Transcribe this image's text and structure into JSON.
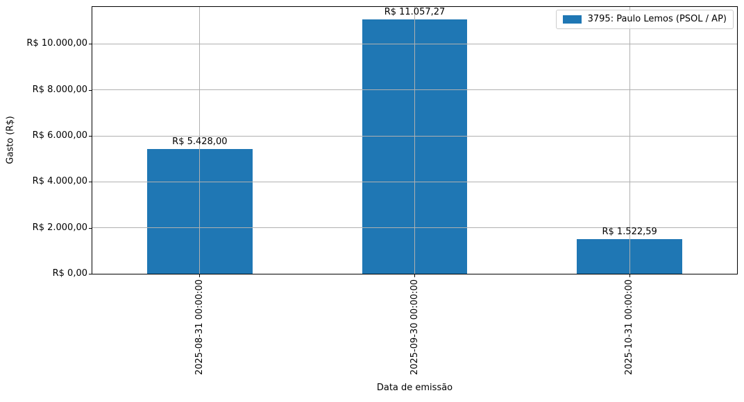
{
  "chart_data": {
    "type": "bar",
    "title": "",
    "xlabel": "Data de emissão",
    "ylabel": "Gasto (R$)",
    "categories": [
      "2025-08-31 00:00:00",
      "2025-09-30 00:00:00",
      "2025-10-31 00:00:00"
    ],
    "series": [
      {
        "name": "3795: Paulo Lemos (PSOL / AP)",
        "values": [
          5428.0,
          11057.27,
          1522.59
        ],
        "color": "#1f77b4"
      }
    ],
    "bar_labels": [
      "R$ 5.428,00",
      "R$ 11.057,27",
      "R$ 1.522,59"
    ],
    "y_ticks": [
      {
        "value": 0,
        "label": "R$ 0,00"
      },
      {
        "value": 2000,
        "label": "R$ 2.000,00"
      },
      {
        "value": 4000,
        "label": "R$ 4.000,00"
      },
      {
        "value": 6000,
        "label": "R$ 6.000,00"
      },
      {
        "value": 8000,
        "label": "R$ 8.000,00"
      },
      {
        "value": 10000,
        "label": "R$ 10.000,00"
      }
    ],
    "ylim": [
      0,
      11610
    ],
    "grid": true,
    "grid_above_bars": true,
    "legend_position": "upper right"
  },
  "colors": {
    "bar": "#1f77b4",
    "grid": "#b0b0b0",
    "spine": "#000000",
    "legend_border": "#cccccc",
    "background": "#ffffff"
  }
}
